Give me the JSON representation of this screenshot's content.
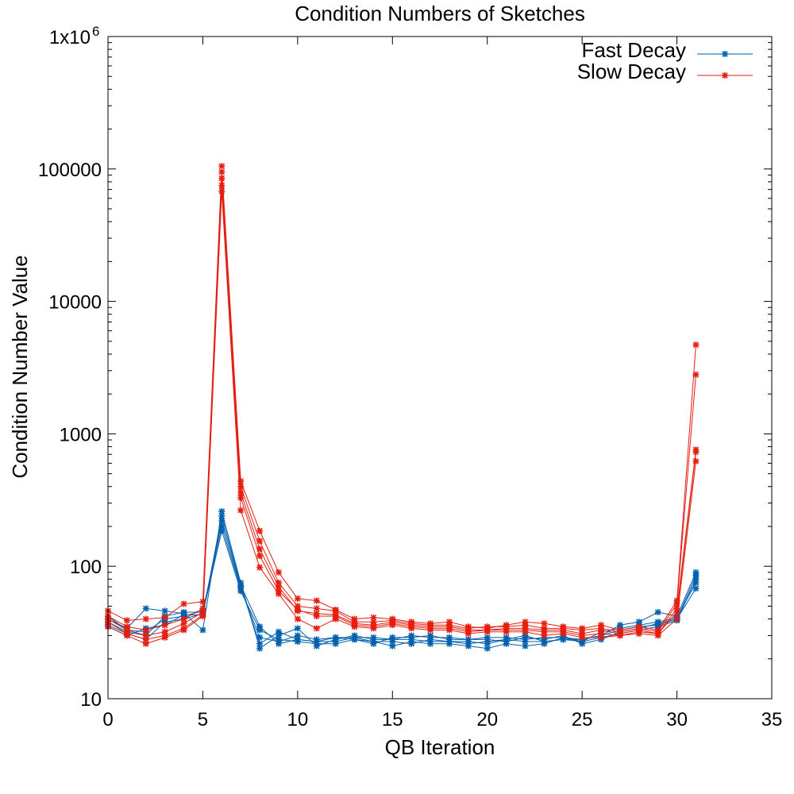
{
  "chart_data": {
    "type": "line",
    "title": "Condition Numbers of Sketches",
    "xlabel": "QB Iteration",
    "ylabel": "Condition Number Value",
    "xlim": [
      0,
      35
    ],
    "ylim": [
      10,
      1000000
    ],
    "yscale": "log",
    "grid": false,
    "legend_position": "top-right",
    "x_ticks": [
      0,
      5,
      10,
      15,
      20,
      25,
      30,
      35
    ],
    "x_tick_labels": [
      "0",
      "5",
      "10",
      "15",
      "20",
      "25",
      "30",
      "35"
    ],
    "y_ticks": [
      10,
      100,
      1000,
      10000,
      100000,
      1000000
    ],
    "y_tick_labels": [
      "10",
      "100",
      "1000",
      "10000",
      "100000",
      "1x10"
    ],
    "y_top_exponent": "6",
    "legend": [
      {
        "label": "Fast Decay",
        "color": "#0060ad"
      },
      {
        "label": "Slow Decay",
        "color": "#e51e10"
      }
    ],
    "x": [
      0,
      1,
      2,
      3,
      4,
      5,
      6,
      7,
      8,
      9,
      10,
      11,
      12,
      13,
      14,
      15,
      16,
      17,
      18,
      19,
      20,
      21,
      22,
      23,
      24,
      25,
      26,
      27,
      28,
      29,
      30,
      31
    ],
    "series": [
      {
        "name": "Fast Decay",
        "group": "Fast Decay",
        "color": "#0060ad",
        "values": [
          40,
          34,
          48,
          46,
          44,
          33,
          260,
          75,
          24,
          30,
          34,
          25,
          28,
          30,
          28,
          28,
          28,
          27,
          27,
          27,
          26,
          28,
          30,
          27,
          28,
          28,
          30,
          36,
          38,
          45,
          42,
          90
        ]
      },
      {
        "name": "Fast Decay",
        "group": "Fast Decay",
        "color": "#0060ad",
        "values": [
          38,
          32,
          30,
          42,
          45,
          45,
          220,
          70,
          26,
          32,
          28,
          27,
          27,
          29,
          27,
          25,
          27,
          26,
          26,
          25,
          24,
          26,
          25,
          26,
          29,
          27,
          32,
          34,
          36,
          38,
          41,
          75
        ]
      },
      {
        "name": "Fast Decay",
        "group": "Fast Decay",
        "color": "#0060ad",
        "values": [
          42,
          33,
          32,
          40,
          42,
          46,
          200,
          68,
          29,
          27,
          30,
          28,
          29,
          28,
          26,
          29,
          29,
          30,
          28,
          28,
          28,
          27,
          29,
          28,
          30,
          26,
          28,
          32,
          34,
          37,
          40,
          68
        ]
      },
      {
        "name": "Fast Decay",
        "group": "Fast Decay",
        "color": "#0060ad",
        "values": [
          36,
          31,
          28,
          38,
          40,
          44,
          185,
          65,
          33,
          28,
          27,
          26,
          26,
          28,
          27,
          27,
          26,
          28,
          27,
          26,
          27,
          28,
          27,
          27,
          28,
          27,
          29,
          31,
          33,
          35,
          39,
          80
        ]
      },
      {
        "name": "Fast Decay",
        "group": "Fast Decay",
        "color": "#0060ad",
        "values": [
          35,
          30,
          34,
          36,
          43,
          43,
          240,
          72,
          35,
          26,
          28,
          27,
          29,
          29,
          29,
          28,
          30,
          29,
          29,
          28,
          29,
          29,
          28,
          29,
          29,
          28,
          30,
          33,
          35,
          36,
          40,
          85
        ]
      },
      {
        "name": "Slow Decay",
        "group": "Slow Decay",
        "color": "#e51e10",
        "values": [
          46,
          39,
          40,
          41,
          52,
          54,
          105000,
          440,
          185,
          90,
          57,
          55,
          47,
          40,
          41,
          40,
          38,
          37,
          38,
          35,
          34,
          36,
          38,
          37,
          35,
          34,
          36,
          33,
          35,
          33,
          55,
          4700
        ]
      },
      {
        "name": "Slow Decay",
        "group": "Slow Decay",
        "color": "#e51e10",
        "values": [
          42,
          35,
          33,
          36,
          40,
          48,
          95000,
          400,
          155,
          75,
          50,
          48,
          46,
          38,
          38,
          39,
          37,
          36,
          36,
          34,
          35,
          35,
          36,
          34,
          34,
          33,
          34,
          32,
          34,
          32,
          52,
          2800
        ]
      },
      {
        "name": "Slow Decay",
        "group": "Slow Decay",
        "color": "#e51e10",
        "values": [
          40,
          33,
          30,
          32,
          37,
          45,
          85000,
          360,
          135,
          70,
          46,
          44,
          43,
          37,
          36,
          38,
          36,
          35,
          35,
          33,
          33,
          34,
          34,
          33,
          33,
          31,
          33,
          31,
          33,
          31,
          48,
          760
        ]
      },
      {
        "name": "Slow Decay",
        "group": "Slow Decay",
        "color": "#e51e10",
        "values": [
          38,
          31,
          28,
          30,
          34,
          43,
          75000,
          330,
          120,
          65,
          47,
          42,
          42,
          36,
          35,
          37,
          35,
          34,
          34,
          32,
          33,
          33,
          33,
          32,
          32,
          30,
          31,
          30,
          32,
          31,
          45,
          730
        ]
      },
      {
        "name": "Slow Decay",
        "group": "Slow Decay",
        "color": "#e51e10",
        "values": [
          35,
          30,
          26,
          29,
          33,
          42,
          68000,
          265,
          98,
          62,
          40,
          34,
          40,
          35,
          34,
          36,
          34,
          33,
          33,
          31,
          32,
          32,
          32,
          30,
          31,
          29,
          29,
          30,
          31,
          30,
          40,
          620
        ]
      }
    ]
  }
}
